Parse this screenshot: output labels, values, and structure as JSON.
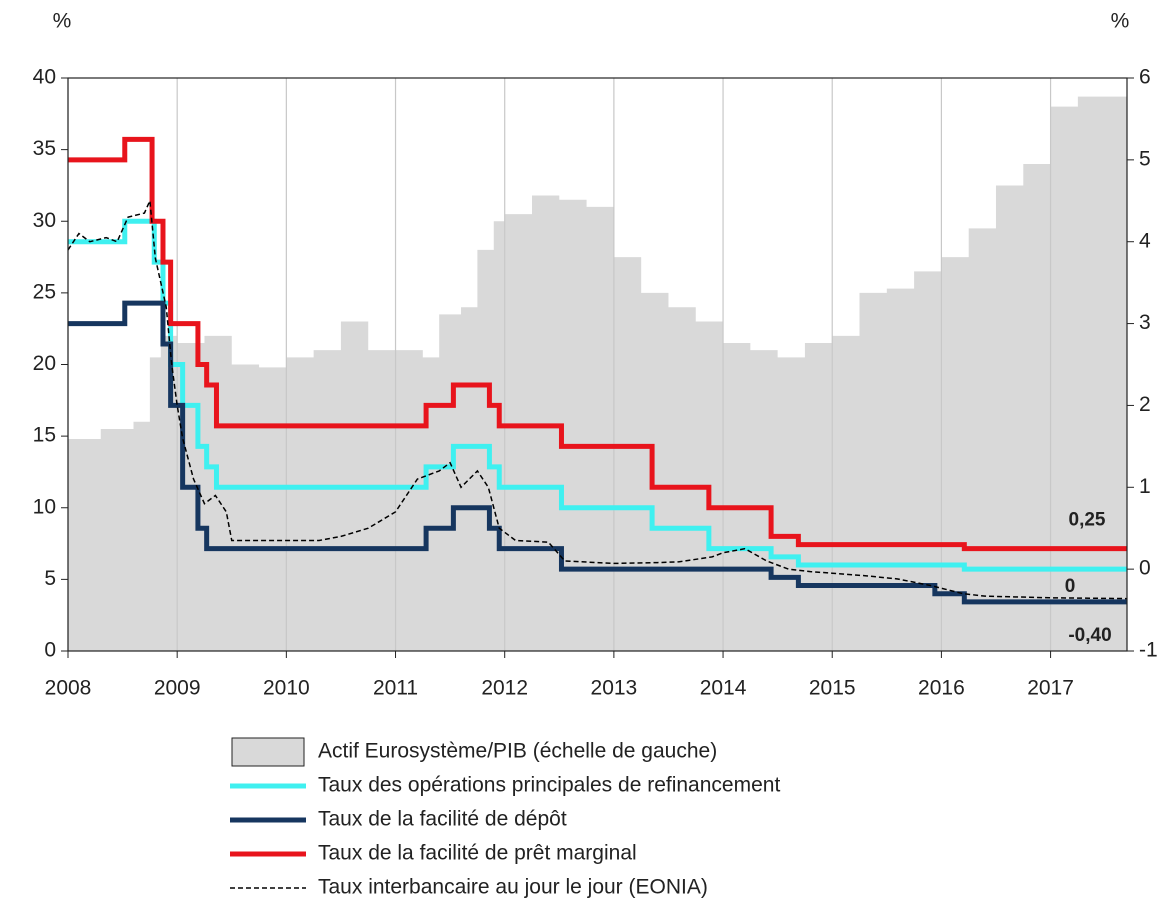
{
  "chart_data": {
    "type": "line",
    "y_unit_left": "%",
    "y_unit_right": "%",
    "xlim": [
      2008,
      2017.7
    ],
    "xticks": [
      2008,
      2009,
      2010,
      2011,
      2012,
      2013,
      2014,
      2015,
      2016,
      2017
    ],
    "ylim": [
      0,
      40
    ],
    "yticks": [
      0,
      5,
      10,
      15,
      20,
      25,
      30,
      35,
      40
    ],
    "y2lim": [
      -1,
      6
    ],
    "y2ticks": [
      {
        "value": -1,
        "label": "-1"
      },
      0,
      1,
      2,
      3,
      4,
      5,
      6
    ],
    "grid": "x",
    "series": [
      {
        "name": "Actif Eurosystème/PIB (échelle de gauche)",
        "style": "area-step",
        "color": "#d9d9d9",
        "axis": "y",
        "x": [
          2008.0,
          2008.3,
          2008.6,
          2008.75,
          2008.85,
          2009.0,
          2009.25,
          2009.5,
          2009.75,
          2010.0,
          2010.25,
          2010.5,
          2010.75,
          2011.0,
          2011.25,
          2011.4,
          2011.6,
          2011.75,
          2011.9,
          2012.0,
          2012.25,
          2012.5,
          2012.75,
          2013.0,
          2013.25,
          2013.5,
          2013.75,
          2014.0,
          2014.25,
          2014.5,
          2014.75,
          2015.0,
          2015.25,
          2015.5,
          2015.75,
          2016.0,
          2016.25,
          2016.5,
          2016.75,
          2017.0,
          2017.25
        ],
        "values": [
          14.8,
          15.5,
          16,
          20.5,
          22,
          21.5,
          22,
          20,
          19.8,
          20.5,
          21,
          23,
          21,
          21,
          20.5,
          23.5,
          24,
          28,
          30,
          30.5,
          31.8,
          31.5,
          31,
          27.5,
          25,
          24,
          23,
          21.5,
          21,
          20.5,
          21.5,
          22,
          25,
          25.3,
          26.5,
          27.5,
          29.5,
          32.5,
          34,
          38,
          38.7
        ]
      },
      {
        "name": "Taux des opérations principales de refinancement",
        "style": "step",
        "color": "#3ff0f0",
        "axis": "y2",
        "x": [
          2008.0,
          2008.52,
          2008.79,
          2008.87,
          2008.94,
          2009.05,
          2009.19,
          2009.27,
          2009.36,
          2011.28,
          2011.53,
          2011.86,
          2011.95,
          2012.52,
          2013.35,
          2013.87,
          2014.44,
          2014.69,
          2016.21
        ],
        "values": [
          4.0,
          4.25,
          3.75,
          3.25,
          2.5,
          2.0,
          1.5,
          1.25,
          1.0,
          1.25,
          1.5,
          1.25,
          1.0,
          0.75,
          0.5,
          0.25,
          0.15,
          0.05,
          0.0
        ]
      },
      {
        "name": "Taux de la facilité de dépôt",
        "style": "step",
        "color": "#16365f",
        "axis": "y2",
        "x": [
          2008.0,
          2008.52,
          2008.77,
          2008.87,
          2008.94,
          2009.05,
          2009.19,
          2009.27,
          2011.28,
          2011.53,
          2011.86,
          2011.95,
          2012.52,
          2014.44,
          2014.69,
          2015.94,
          2016.21
        ],
        "values": [
          3.0,
          3.25,
          3.25,
          2.75,
          2.0,
          1.0,
          0.5,
          0.25,
          0.5,
          0.75,
          0.5,
          0.25,
          0.0,
          -0.1,
          -0.2,
          -0.3,
          -0.4
        ]
      },
      {
        "name": "Taux de la facilité de prêt marginal",
        "style": "step",
        "color": "#e8141c",
        "axis": "y2",
        "x": [
          2008.0,
          2008.52,
          2008.77,
          2008.87,
          2008.94,
          2009.19,
          2009.27,
          2009.36,
          2011.28,
          2011.53,
          2011.86,
          2011.95,
          2012.52,
          2013.35,
          2013.87,
          2014.44,
          2014.69,
          2016.21
        ],
        "values": [
          5.0,
          5.25,
          4.25,
          3.75,
          3.0,
          2.5,
          2.25,
          1.75,
          2.0,
          2.25,
          2.0,
          1.75,
          1.5,
          1.0,
          0.75,
          0.4,
          0.3,
          0.25
        ]
      },
      {
        "name": "Taux interbancaire au jour le jour (EONIA)",
        "style": "dashed",
        "color": "#000000",
        "axis": "y2",
        "x": [
          2008.0,
          2008.1,
          2008.2,
          2008.35,
          2008.45,
          2008.55,
          2008.7,
          2008.75,
          2008.8,
          2008.9,
          2008.95,
          2009.0,
          2009.05,
          2009.15,
          2009.25,
          2009.35,
          2009.45,
          2009.5,
          2009.7,
          2010.0,
          2010.3,
          2010.5,
          2010.75,
          2011.0,
          2011.2,
          2011.4,
          2011.5,
          2011.6,
          2011.75,
          2011.85,
          2011.95,
          2012.1,
          2012.4,
          2012.55,
          2013.0,
          2013.4,
          2013.6,
          2013.9,
          2014.0,
          2014.2,
          2014.4,
          2014.6,
          2014.8,
          2015.0,
          2015.3,
          2015.6,
          2015.9,
          2016.2,
          2016.4,
          2017.0,
          2017.7
        ],
        "values": [
          3.9,
          4.1,
          4.0,
          4.05,
          4.0,
          4.3,
          4.35,
          4.5,
          3.8,
          3.2,
          2.5,
          2.0,
          1.6,
          1.1,
          0.8,
          0.9,
          0.7,
          0.35,
          0.35,
          0.35,
          0.35,
          0.4,
          0.5,
          0.7,
          1.1,
          1.2,
          1.3,
          1.0,
          1.2,
          1.0,
          0.5,
          0.35,
          0.33,
          0.1,
          0.07,
          0.08,
          0.09,
          0.15,
          0.2,
          0.25,
          0.1,
          0.0,
          -0.03,
          -0.05,
          -0.08,
          -0.12,
          -0.2,
          -0.3,
          -0.33,
          -0.35,
          -0.36
        ]
      }
    ],
    "annotations": [
      {
        "text": "0,25",
        "value": 0.25,
        "color": "#e8141c"
      },
      {
        "text": "0",
        "value": 0,
        "color": "#3ff0f0"
      },
      {
        "text": "-0,40",
        "value": -0.4,
        "color": "#16365f"
      }
    ]
  }
}
